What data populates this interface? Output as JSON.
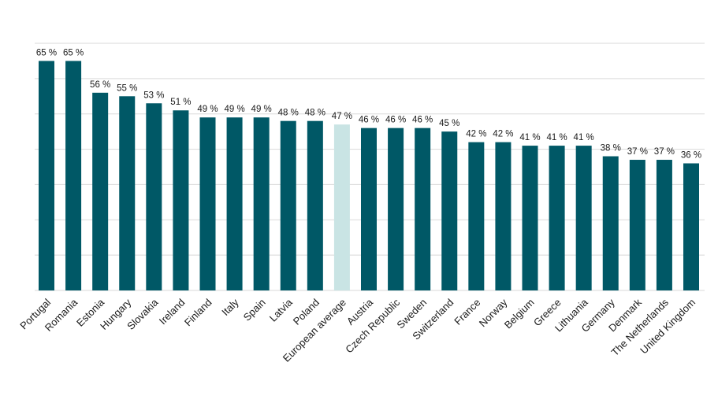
{
  "chart_data": {
    "type": "bar",
    "title": "",
    "xlabel": "",
    "ylabel": "",
    "ylim": [
      0,
      70
    ],
    "y_gridline_step": 10,
    "y_tick_labels_shown": false,
    "grid": true,
    "value_suffix": " %",
    "categories": [
      "Portugal",
      "Romania",
      "Estonia",
      "Hungary",
      "Slovakia",
      "Ireland",
      "Finland",
      "Italy",
      "Spain",
      "Latvia",
      "Poland",
      "European average",
      "Austria",
      "Czech Republic",
      "Sweden",
      "Switzerland",
      "France",
      "Norway",
      "Belgium",
      "Greece",
      "Lithuania",
      "Germany",
      "Denmark",
      "The Netherlands",
      "United Kingdom"
    ],
    "values": [
      65,
      65,
      56,
      55,
      53,
      51,
      49,
      49,
      49,
      48,
      48,
      47,
      46,
      46,
      46,
      45,
      42,
      42,
      41,
      41,
      41,
      38,
      37,
      37,
      36
    ],
    "value_labels": [
      "65 %",
      "65 %",
      "56 %",
      "55 %",
      "53 %",
      "51 %",
      "49 %",
      "49 %",
      "49 %",
      "48 %",
      "48 %",
      "47 %",
      "46 %",
      "46 %",
      "46 %",
      "45 %",
      "42 %",
      "42 %",
      "41 %",
      "41 %",
      "41 %",
      "38 %",
      "37 %",
      "37 %",
      "36 %"
    ],
    "highlight_category": "European average",
    "colors": {
      "bar": "#005866",
      "highlight": "#c9e4e4",
      "grid": "#d9d9d9",
      "text": "#1a1a1a"
    }
  }
}
